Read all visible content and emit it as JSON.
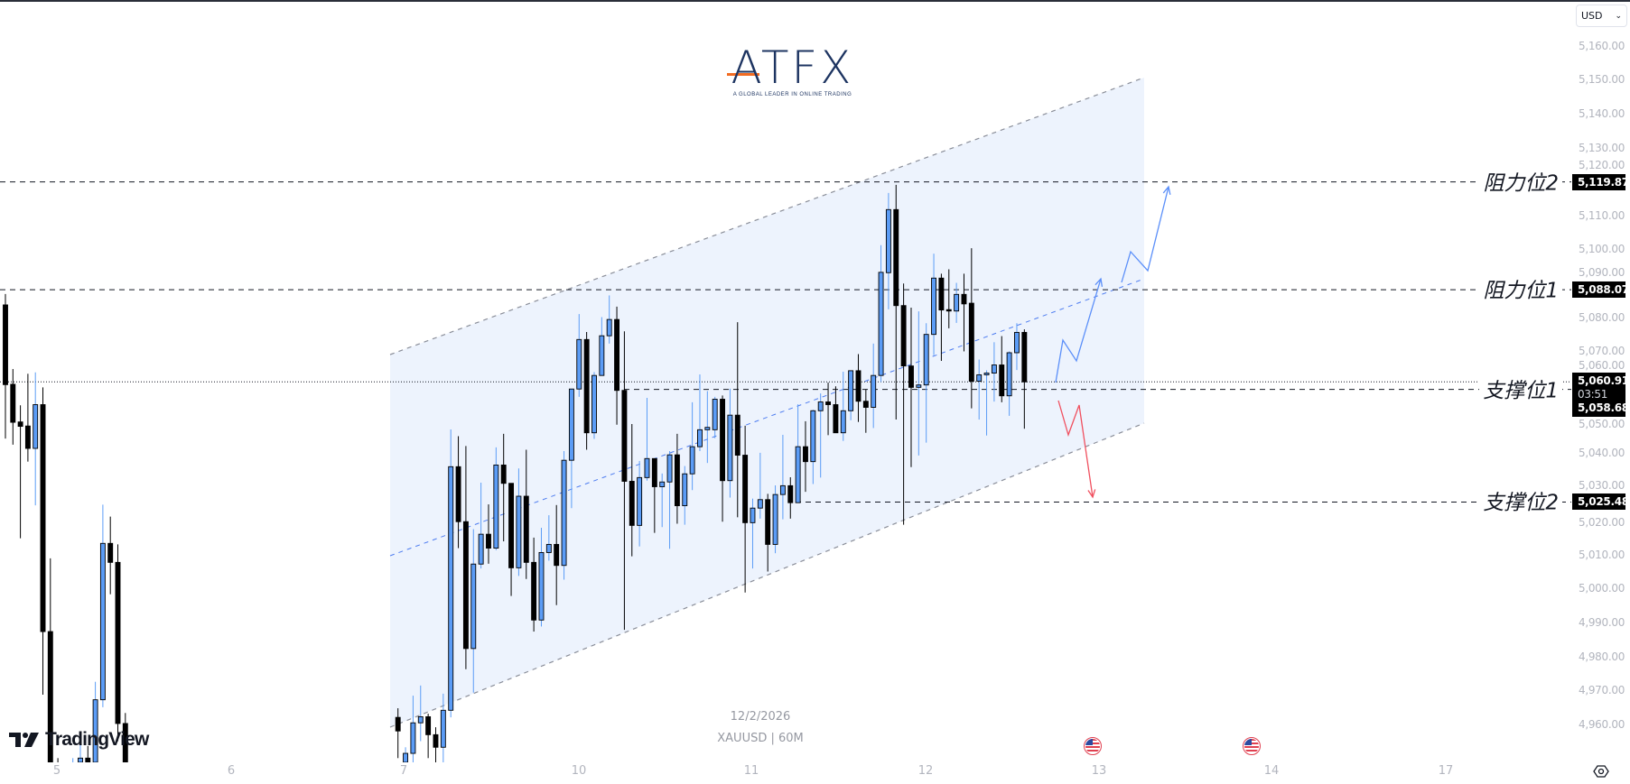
{
  "header": {
    "currency": "USD"
  },
  "brand": {
    "logo_text": "ATFX",
    "tagline": "A GLOBAL LEADER IN ONLINE TRADING",
    "watermark_logo": "TradingView"
  },
  "watermark": {
    "date": "12/2/2026",
    "symbol": "XAUUSD | 60M"
  },
  "levels": {
    "resistance2": {
      "label": "阻力位2",
      "price": "5,119.87"
    },
    "resistance1": {
      "label": "阻力位1",
      "price": "5,088.07"
    },
    "support1": {
      "label": "支撑位1",
      "price": "5,058.68"
    },
    "support2": {
      "label": "支撑位2",
      "price": "5,025.48"
    }
  },
  "current": {
    "price": "5,060.91",
    "countdown": "03:51"
  },
  "colors": {
    "up": "#5b9cf6",
    "down": "#000000",
    "channel_fill": "#edf3fd",
    "channel_line": "#8a8e99",
    "mid_line": "#4d7cf0",
    "up_arrow": "#5b8ff9",
    "down_arrow": "#f0505f"
  },
  "icons": {
    "events": [
      "us-flag-icon",
      "us-flag-icon"
    ],
    "settings": "settings-icon",
    "dropdown": "chevron-down-icon"
  },
  "chart_data": {
    "type": "candlestick",
    "symbol": "XAUUSD",
    "interval": "60M",
    "ylim": [
      4950,
      5165
    ],
    "y_ticks": [
      "5,160.00",
      "5,150.00",
      "5,140.00",
      "5,130.00",
      "5,120.00",
      "5,110.00",
      "5,100.00",
      "5,090.00",
      "5,080.00",
      "5,070.00",
      "5,060.00",
      "5,050.00",
      "5,040.00",
      "5,030.00",
      "5,020.00",
      "5,010.00",
      "5,000.00",
      "4,990.00",
      "4,980.00",
      "4,970.00",
      "4,960.00"
    ],
    "x_ticks": [
      "5",
      "6",
      "7",
      "10",
      "11",
      "12",
      "13",
      "14",
      "17"
    ],
    "grid": false,
    "horizontal_levels": [
      5119.87,
      5088.07,
      5058.68,
      5025.48
    ],
    "last_price": 5060.91,
    "candles_ohlc_session_a": [
      [
        5083.6,
        5086.8,
        5044.2,
        5060.1
      ],
      [
        5060.2,
        5064.7,
        5042.4,
        5049.0
      ],
      [
        5049.1,
        5054.0,
        5014.8,
        5047.8
      ],
      [
        5047.9,
        5063.3,
        5037.4,
        5041.3
      ],
      [
        5041.3,
        5063.7,
        5024.5,
        5054.2
      ],
      [
        5054.2,
        5059.3,
        4968.7,
        4987.3
      ],
      [
        4987.3,
        5008.9,
        4935,
        4945
      ],
      [
        4945,
        4950,
        4925,
        4935
      ],
      [
        4935,
        4945,
        4928,
        4940
      ],
      [
        4940,
        4950,
        4935,
        4946
      ],
      [
        4944,
        4954.5,
        4940,
        4950
      ],
      [
        4950,
        4953.6,
        4938,
        4946
      ],
      [
        4946,
        4972.5,
        4940,
        4967.2
      ],
      [
        4967.2,
        5024.7,
        4965,
        5013.3
      ],
      [
        5013.3,
        5021.2,
        4998.3,
        5007.7
      ],
      [
        5007.7,
        5013.0,
        4955,
        4960.2
      ],
      [
        4960.2,
        4963.3,
        4938,
        4945
      ]
    ],
    "candles_ohlc_session_b": [
      [
        4962,
        4964.7,
        4950,
        4958
      ],
      [
        4945,
        4953.2,
        4940,
        4951.4
      ],
      [
        4951.4,
        4968.4,
        4948,
        4960.4
      ],
      [
        4960.4,
        4971.4,
        4955,
        4962.2
      ],
      [
        4962.2,
        4963.1,
        4950,
        4956.9
      ],
      [
        4956.9,
        4959.1,
        4948,
        4953.2
      ],
      [
        4953.2,
        4969,
        4948,
        4964.1
      ],
      [
        4964.1,
        5046.9,
        4962,
        5035.9
      ],
      [
        5035.9,
        5044.9,
        5011.9,
        5019.7
      ],
      [
        5019.7,
        5042.0,
        4976.2,
        4982.3
      ],
      [
        4982.3,
        5017.5,
        4969.3,
        5007.2
      ],
      [
        5007.2,
        5031.2,
        5005.9,
        5016.0
      ],
      [
        5016.0,
        5024.8,
        5007.3,
        5011.9
      ],
      [
        5011.9,
        5041.6,
        5011.3,
        5036.4
      ],
      [
        5036.4,
        5045.6,
        5013.9,
        5031.0
      ],
      [
        5031.0,
        5031.0,
        4997.8,
        5006.1
      ],
      [
        5006.1,
        5035.4,
        5003.7,
        5027.2
      ],
      [
        5027.2,
        5040.9,
        5002.8,
        5007.7
      ],
      [
        5007.7,
        5015.0,
        4987.3,
        4990.7
      ],
      [
        4990.7,
        5017.9,
        4988.8,
        5010.6
      ],
      [
        5010.6,
        5021.6,
        5008.2,
        5013.0
      ],
      [
        5013.0,
        5024.6,
        4995.1,
        5006.8
      ],
      [
        5006.8,
        5040.5,
        5002.6,
        5037.8
      ],
      [
        5037.8,
        5058.8,
        5023.7,
        5058.8
      ],
      [
        5058.8,
        5080.9,
        5056.5,
        5073.4
      ],
      [
        5073.4,
        5075.6,
        5040.9,
        5045.9
      ],
      [
        5045.9,
        5063.8,
        5044.1,
        5062.8
      ],
      [
        5062.8,
        5080.0,
        5062.8,
        5074.5
      ],
      [
        5074.5,
        5086.4,
        5072.2,
        5079.3
      ],
      [
        5079.3,
        5083.1,
        5048.3,
        5058.4
      ],
      [
        5058.4,
        5075.8,
        4987.8,
        5031.6
      ],
      [
        5031.6,
        5048.5,
        5009.5,
        5018.6
      ],
      [
        5018.6,
        5037.6,
        5012.4,
        5032.7
      ],
      [
        5032.7,
        5056.2,
        5031.8,
        5038.3
      ],
      [
        5038.3,
        5038.3,
        5016.4,
        5030.0
      ],
      [
        5030.0,
        5033.9,
        5018.1,
        5031.4
      ],
      [
        5031.4,
        5040.5,
        5011.7,
        5039.4
      ],
      [
        5039.4,
        5045.6,
        5019.1,
        5024.4
      ],
      [
        5024.4,
        5036.1,
        5018.8,
        5033.8
      ],
      [
        5033.8,
        5054.9,
        5029.0,
        5041.8
      ],
      [
        5041.8,
        5063.1,
        5040.5,
        5046.8
      ],
      [
        5046.8,
        5058.2,
        5037.0,
        5047.5
      ],
      [
        5046.8,
        5056.5,
        5044.3,
        5055.8
      ],
      [
        5055.8,
        5056.9,
        5019.7,
        5031.8
      ],
      [
        5031.8,
        5058.9,
        5026.8,
        5051.1
      ],
      [
        5051.1,
        5078.5,
        5021.0,
        5039.3
      ],
      [
        5039.3,
        5048.0,
        4998.8,
        5019.4
      ],
      [
        5019.4,
        5026.5,
        5005.9,
        5023.7
      ],
      [
        5023.7,
        5040.0,
        5020.6,
        5026.2
      ],
      [
        5026.2,
        5027.9,
        5005.0,
        5013.0
      ],
      [
        5013.0,
        5030.4,
        5010.4,
        5027.7
      ],
      [
        5027.7,
        5045.3,
        5020.4,
        5030.3
      ],
      [
        5030.3,
        5032.8,
        5020.6,
        5025.3
      ],
      [
        5025.3,
        5054.3,
        5025.3,
        5041.8
      ],
      [
        5041.8,
        5049.3,
        5028.5,
        5037.4
      ],
      [
        5037.4,
        5052.7,
        5030.8,
        5052.4
      ],
      [
        5052.4,
        5057.5,
        5032.7,
        5055.0
      ],
      [
        5055.0,
        5060.7,
        5045.2,
        5054.2
      ],
      [
        5054.2,
        5059.6,
        5045.9,
        5045.9
      ],
      [
        5045.9,
        5063.9,
        5043.5,
        5052.4
      ],
      [
        5052.4,
        5064.2,
        5049.6,
        5064.2
      ],
      [
        5064.2,
        5069.1,
        5049.1,
        5055.2
      ],
      [
        5055.2,
        5058.7,
        5045.9,
        5053.4
      ],
      [
        5053.4,
        5072.2,
        5047.3,
        5062.8
      ],
      [
        5062.8,
        5101.2,
        5060.9,
        5093.2
      ],
      [
        5093.1,
        5116.6,
        5082.3,
        5111.7
      ],
      [
        5111.7,
        5119.0,
        5049.8,
        5083.4
      ],
      [
        5083.4,
        5089.9,
        5018.8,
        5065.6
      ],
      [
        5065.6,
        5082.8,
        5035.8,
        5059.3
      ],
      [
        5059.3,
        5081.7,
        5039.2,
        5060.0
      ],
      [
        5060.0,
        5078.2,
        5043.0,
        5074.9
      ],
      [
        5074.9,
        5098.7,
        5068.8,
        5091.5
      ],
      [
        5091.5,
        5092.8,
        5067.1,
        5082.1
      ],
      [
        5082.2,
        5094.1,
        5076.7,
        5081.8
      ],
      [
        5081.8,
        5090.1,
        5078.3,
        5086.7
      ],
      [
        5086.7,
        5092.8,
        5069.9,
        5083.9
      ],
      [
        5084.1,
        5100.3,
        5053.1,
        5061.1
      ],
      [
        5061.1,
        5067.5,
        5049.8,
        5063.0
      ],
      [
        5063.0,
        5064.3,
        5045.1,
        5063.5
      ],
      [
        5063.5,
        5072.6,
        5055.1,
        5065.9
      ],
      [
        5065.9,
        5074.4,
        5054.9,
        5056.8
      ],
      [
        5056.8,
        5069.9,
        5050.9,
        5069.5
      ],
      [
        5069.5,
        5078.2,
        5064.4,
        5075.5
      ],
      [
        5075.5,
        5076.4,
        5047.1,
        5060.91
      ]
    ]
  }
}
